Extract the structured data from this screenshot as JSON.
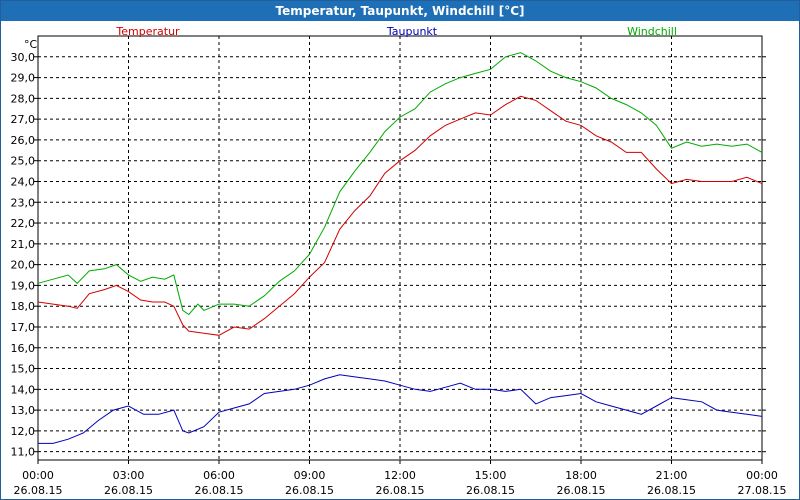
{
  "window": {
    "title": "Temperatur, Taupunkt, Windchill [°C]"
  },
  "chart_data": {
    "type": "line",
    "title": "Temperatur, Taupunkt, Windchill [°C]",
    "ylabel": "°C",
    "ylim": [
      10.6,
      31.0
    ],
    "yticks": [
      11,
      12,
      13,
      14,
      15,
      16,
      17,
      18,
      19,
      20,
      21,
      22,
      23,
      24,
      25,
      26,
      27,
      28,
      29,
      30
    ],
    "xlim": [
      0,
      24
    ],
    "xticks": [
      {
        "h": 0,
        "time": "00:00",
        "date": "26.08.15"
      },
      {
        "h": 3,
        "time": "03:00",
        "date": "26.08.15"
      },
      {
        "h": 6,
        "time": "06:00",
        "date": "26.08.15"
      },
      {
        "h": 9,
        "time": "09:00",
        "date": "26.08.15"
      },
      {
        "h": 12,
        "time": "12:00",
        "date": "26.08.15"
      },
      {
        "h": 15,
        "time": "15:00",
        "date": "26.08.15"
      },
      {
        "h": 18,
        "time": "18:00",
        "date": "26.08.15"
      },
      {
        "h": 21,
        "time": "21:00",
        "date": "26.08.15"
      },
      {
        "h": 24,
        "time": "00:00",
        "date": "27.08.15"
      }
    ],
    "grid": true,
    "series": [
      {
        "name": "Temperatur",
        "color": "#d40000",
        "x": [
          0,
          0.5,
          1.0,
          1.3,
          1.7,
          2.2,
          2.6,
          3.0,
          3.4,
          3.8,
          4.2,
          4.5,
          4.8,
          5.0,
          5.5,
          6.0,
          6.5,
          7.0,
          7.5,
          8.0,
          8.5,
          9.0,
          9.5,
          10.0,
          10.5,
          11.0,
          11.5,
          12.0,
          12.5,
          13.0,
          13.5,
          14.0,
          14.5,
          15.0,
          15.5,
          16.0,
          16.5,
          17.0,
          17.5,
          18.0,
          18.5,
          19.0,
          19.5,
          20.0,
          20.5,
          21.0,
          21.5,
          22.0,
          22.5,
          23.0,
          23.5,
          24.0
        ],
        "y": [
          18.2,
          18.1,
          18.0,
          17.9,
          18.6,
          18.8,
          19.0,
          18.7,
          18.3,
          18.2,
          18.2,
          18.0,
          17.1,
          16.8,
          16.7,
          16.6,
          17.0,
          16.9,
          17.4,
          18.0,
          18.6,
          19.4,
          20.1,
          21.7,
          22.6,
          23.3,
          24.4,
          25.0,
          25.5,
          26.2,
          26.7,
          27.0,
          27.3,
          27.2,
          27.7,
          28.1,
          27.9,
          27.4,
          26.9,
          26.7,
          26.2,
          25.9,
          25.4,
          25.4,
          24.6,
          23.9,
          24.1,
          24.0,
          24.0,
          24.0,
          24.2,
          23.9
        ]
      },
      {
        "name": "Taupunkt",
        "color": "#0000bb",
        "x": [
          0,
          0.5,
          1.0,
          1.5,
          2.0,
          2.5,
          3.0,
          3.5,
          4.0,
          4.5,
          4.8,
          5.0,
          5.5,
          6.0,
          6.5,
          7.0,
          7.5,
          8.0,
          8.5,
          9.0,
          9.5,
          10.0,
          10.5,
          11.0,
          11.5,
          12.0,
          12.5,
          13.0,
          13.5,
          14.0,
          14.5,
          15.0,
          15.5,
          16.0,
          16.5,
          17.0,
          17.5,
          18.0,
          18.5,
          19.0,
          19.5,
          20.0,
          20.5,
          21.0,
          21.5,
          22.0,
          22.5,
          23.0,
          23.5,
          24.0
        ],
        "y": [
          11.4,
          11.4,
          11.6,
          11.9,
          12.5,
          13.0,
          13.2,
          12.8,
          12.8,
          13.0,
          12.0,
          11.9,
          12.2,
          12.9,
          13.1,
          13.3,
          13.8,
          13.9,
          14.0,
          14.2,
          14.5,
          14.7,
          14.6,
          14.5,
          14.4,
          14.2,
          14.0,
          13.9,
          14.1,
          14.3,
          14.0,
          14.0,
          13.9,
          14.0,
          13.3,
          13.6,
          13.7,
          13.8,
          13.4,
          13.2,
          13.0,
          12.8,
          13.2,
          13.6,
          13.5,
          13.4,
          13.0,
          12.9,
          12.8,
          12.7
        ]
      },
      {
        "name": "Windchill",
        "color": "#00aa00",
        "x": [
          0,
          0.5,
          1.0,
          1.3,
          1.7,
          2.2,
          2.6,
          3.0,
          3.4,
          3.8,
          4.2,
          4.5,
          4.8,
          5.0,
          5.3,
          5.5,
          6.0,
          6.5,
          7.0,
          7.5,
          8.0,
          8.5,
          9.0,
          9.5,
          10.0,
          10.5,
          11.0,
          11.5,
          12.0,
          12.5,
          13.0,
          13.5,
          14.0,
          14.5,
          15.0,
          15.5,
          16.0,
          16.5,
          17.0,
          17.5,
          18.0,
          18.5,
          19.0,
          19.5,
          20.0,
          20.5,
          21.0,
          21.5,
          22.0,
          22.5,
          23.0,
          23.5,
          24.0
        ],
        "y": [
          19.1,
          19.3,
          19.5,
          19.1,
          19.7,
          19.8,
          20.0,
          19.5,
          19.2,
          19.4,
          19.3,
          19.5,
          17.8,
          17.6,
          18.1,
          17.8,
          18.1,
          18.1,
          18.0,
          18.5,
          19.2,
          19.7,
          20.5,
          21.8,
          23.5,
          24.5,
          25.4,
          26.4,
          27.1,
          27.5,
          28.3,
          28.7,
          29.0,
          29.2,
          29.4,
          30.0,
          30.2,
          29.8,
          29.3,
          29.0,
          28.8,
          28.5,
          28.0,
          27.7,
          27.3,
          26.7,
          25.6,
          25.9,
          25.7,
          25.8,
          25.7,
          25.8,
          25.4
        ]
      }
    ]
  }
}
